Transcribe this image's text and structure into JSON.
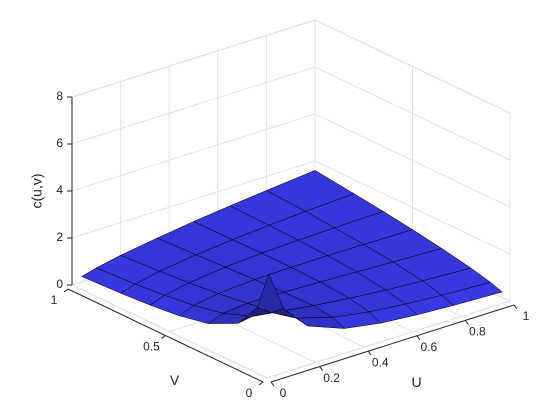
{
  "chart_data": {
    "type": "surface",
    "xlabel": "U",
    "ylabel": "V",
    "zlabel": "c(u,v)",
    "x": [
      0.04,
      0.1,
      0.2,
      0.35,
      0.5,
      0.65,
      0.8,
      1
    ],
    "y": [
      0.04,
      0.1,
      0.2,
      0.35,
      0.5,
      0.65,
      0.8,
      1
    ],
    "z": [
      [
        4.15,
        2.47,
        1.4,
        0.8,
        0.54,
        0.4,
        0.31,
        0.23
      ],
      [
        2.47,
        2.06,
        1.5,
        1.04,
        0.78,
        0.62,
        0.5,
        0.4
      ],
      [
        1.4,
        1.5,
        1.36,
        1.14,
        0.96,
        0.82,
        0.72,
        0.61
      ],
      [
        0.8,
        1.04,
        1.14,
        1.12,
        1.06,
        1.0,
        0.93,
        0.85
      ],
      [
        0.54,
        0.78,
        0.96,
        1.06,
        1.09,
        1.1,
        1.08,
        1.06
      ],
      [
        0.4,
        0.62,
        0.82,
        1.0,
        1.1,
        1.16,
        1.2,
        1.24
      ],
      [
        0.31,
        0.5,
        0.72,
        0.93,
        1.08,
        1.2,
        1.3,
        1.4
      ],
      [
        0.23,
        0.4,
        0.61,
        0.85,
        1.06,
        1.24,
        1.4,
        1.6
      ]
    ],
    "color": "#3c3cf2",
    "edge_color": "#000000",
    "xlim": [
      0,
      1
    ],
    "ylim": [
      0,
      1
    ],
    "zlim": [
      0,
      8
    ],
    "xticks": [
      0,
      0.2,
      0.4,
      0.6,
      0.8,
      1
    ],
    "yticks": [
      0,
      0.5,
      1
    ],
    "zticks": [
      0,
      2,
      4,
      6,
      8
    ],
    "grid": true
  }
}
